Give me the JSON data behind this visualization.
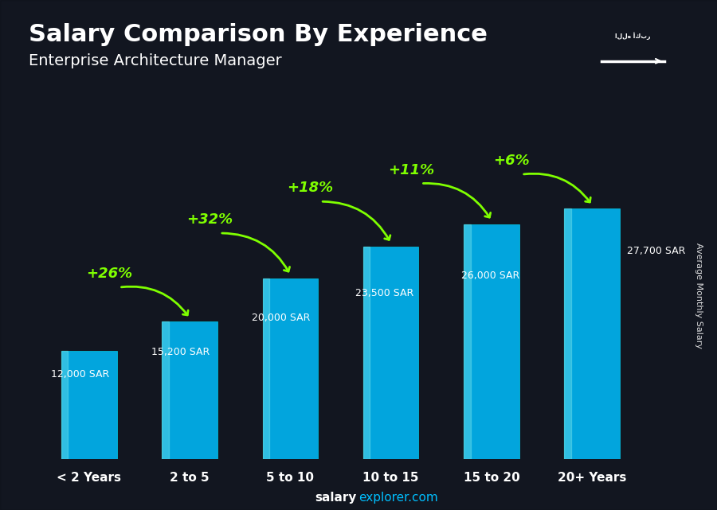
{
  "title": "Salary Comparison By Experience",
  "subtitle": "Enterprise Architecture Manager",
  "categories": [
    "< 2 Years",
    "2 to 5",
    "5 to 10",
    "10 to 15",
    "15 to 20",
    "20+ Years"
  ],
  "values": [
    12000,
    15200,
    20000,
    23500,
    26000,
    27700
  ],
  "labels": [
    "12,000 SAR",
    "15,200 SAR",
    "20,000 SAR",
    "23,500 SAR",
    "26,000 SAR",
    "27,700 SAR"
  ],
  "pct_changes": [
    "+26%",
    "+32%",
    "+18%",
    "+11%",
    "+6%"
  ],
  "bar_color": "#00BFFF",
  "bg_color": "#1a1f2e",
  "text_color": "#ffffff",
  "green_color": "#7FFF00",
  "ylabel": "Average Monthly Salary",
  "ylim": [
    0,
    35000
  ],
  "bar_width": 0.55,
  "label_xoffsets": [
    -0.38,
    -0.38,
    -0.38,
    -0.35,
    -0.3,
    0.35
  ],
  "label_yoffsets": [
    0.78,
    0.78,
    0.78,
    0.78,
    0.78,
    0.83
  ],
  "pct_arc_params": [
    [
      0.5,
      19000,
      "+26%",
      1.0,
      15200
    ],
    [
      1.5,
      25000,
      "+32%",
      2.0,
      20000
    ],
    [
      2.5,
      28500,
      "+18%",
      3.0,
      23500
    ],
    [
      3.5,
      30500,
      "+11%",
      4.0,
      26000
    ],
    [
      4.5,
      31500,
      "+6%",
      5.0,
      27700
    ]
  ]
}
